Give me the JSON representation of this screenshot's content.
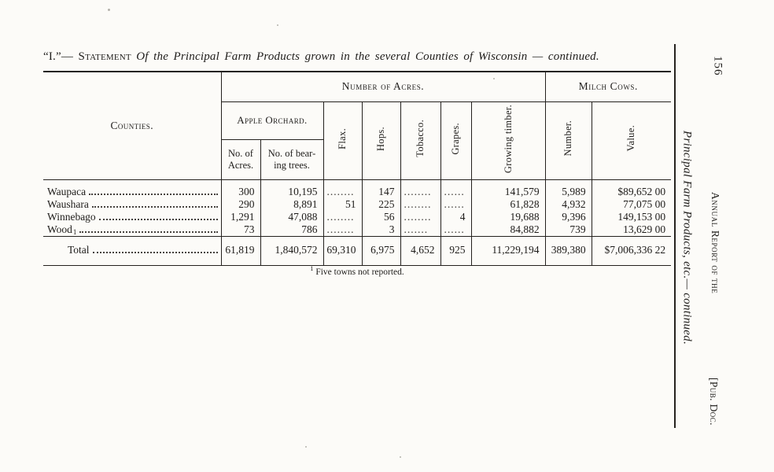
{
  "title": {
    "prefix": "“I.”— ",
    "statement": "Statement",
    "rest": " Of the Principal Farm Products grown in the several Counties of Wisconsin — continued."
  },
  "table": {
    "col_counties": "Counties.",
    "group_acres": "Number of Acres.",
    "group_milch": "Milch Cows.",
    "group_apple": "Apple Orchard.",
    "col_no_acres": "No. of Acres.",
    "col_bearing": "No. of bear-ing trees.",
    "col_flax": "Flax.",
    "col_hops": "Hops.",
    "col_tobacco": "Tobacco.",
    "col_grapes": "Grapes.",
    "col_timber": "Growing timber.",
    "col_number": "Number.",
    "col_value": "Value.",
    "rows": [
      {
        "county": "Waupaca",
        "sup": "",
        "cells": [
          "300",
          "10,195",
          "........",
          "147",
          "........",
          "......",
          "141,579",
          "5,989",
          "$89,652 00"
        ]
      },
      {
        "county": "Waushara",
        "sup": "",
        "cells": [
          "290",
          "8,891",
          "51",
          "225",
          "........",
          "......",
          "61,828",
          "4,932",
          "77,075 00"
        ]
      },
      {
        "county": "Winnebago",
        "sup": "",
        "cells": [
          "1,291",
          "47,088",
          "........",
          "56",
          "........",
          "4",
          "19,688",
          "9,396",
          "149,153 00"
        ]
      },
      {
        "county": "Wood",
        "sup": "1",
        "cells": [
          "73",
          "786",
          "........",
          "3",
          ".......",
          "......",
          "84,882",
          "739",
          "13,629 00"
        ]
      }
    ],
    "total": {
      "label": "Total",
      "cells": [
        "61,819",
        "1,840,572",
        "69,310",
        "6,975",
        "4,652",
        "925",
        "11,229,194",
        "389,380",
        "$7,006,336 22"
      ]
    }
  },
  "footnote": {
    "sup": "1",
    "text": "Five towns not reported."
  },
  "margin": {
    "page_number": "156",
    "running_title": "Principal Farm Products, etc.— continued.",
    "annual_report": "Annual Report of the",
    "pub_doc": "[Pub. Doc."
  }
}
